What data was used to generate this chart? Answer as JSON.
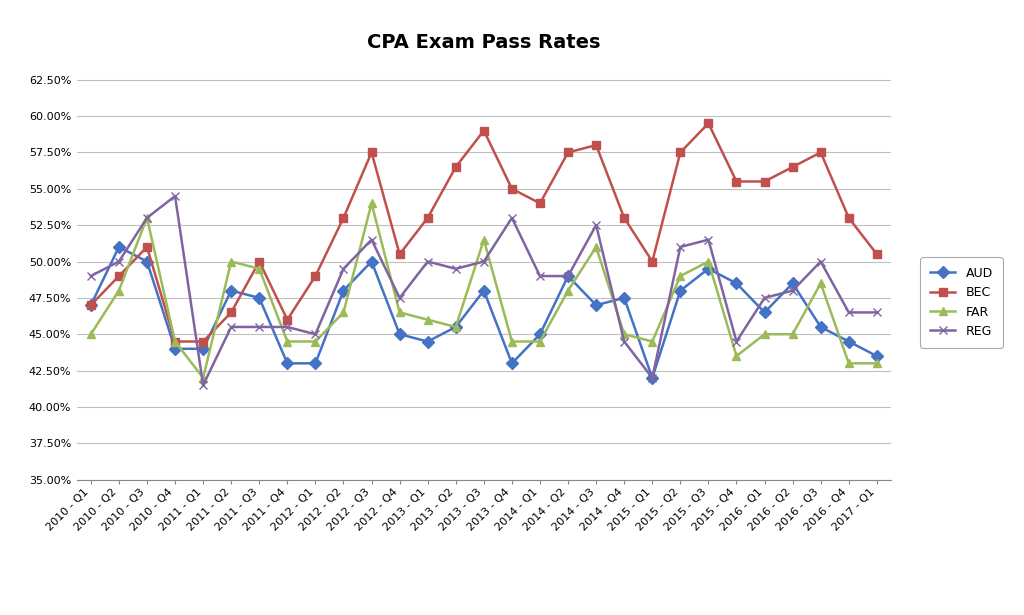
{
  "title": "CPA Exam Pass Rates",
  "categories": [
    "2010 - Q1",
    "2010 - Q2",
    "2010 - Q3",
    "2010 - Q4",
    "2011 - Q1",
    "2011 - Q2",
    "2011 - Q3",
    "2011 - Q4",
    "2012 - Q1",
    "2012 - Q2",
    "2012 - Q3",
    "2012 - Q4",
    "2013 - Q1",
    "2013 - Q2",
    "2013 - Q3",
    "2013 - Q4",
    "2014 - Q1",
    "2014 - Q2",
    "2014 - Q3",
    "2014 - Q4",
    "2015 - Q1",
    "2015 - Q2",
    "2015 - Q3",
    "2015 - Q4",
    "2016 - Q1",
    "2016 - Q2",
    "2016 - Q3",
    "2016 - Q4",
    "2017 - Q1"
  ],
  "AUD": [
    0.47,
    0.51,
    0.5,
    0.44,
    0.44,
    0.48,
    0.475,
    0.43,
    0.43,
    0.48,
    0.5,
    0.45,
    0.445,
    0.455,
    0.48,
    0.43,
    0.45,
    0.49,
    0.47,
    0.475,
    0.42,
    0.48,
    0.495,
    0.485,
    0.465,
    0.485,
    0.455,
    0.445,
    0.435
  ],
  "BEC": [
    0.47,
    0.49,
    0.51,
    0.445,
    0.445,
    0.465,
    0.5,
    0.46,
    0.49,
    0.53,
    0.575,
    0.505,
    0.53,
    0.565,
    0.59,
    0.55,
    0.54,
    0.575,
    0.58,
    0.53,
    0.5,
    0.575,
    0.595,
    0.555,
    0.555,
    0.565,
    0.575,
    0.53,
    0.505
  ],
  "FAR": [
    0.45,
    0.48,
    0.53,
    0.445,
    0.42,
    0.5,
    0.495,
    0.445,
    0.445,
    0.465,
    0.54,
    0.465,
    0.46,
    0.455,
    0.515,
    0.445,
    0.445,
    0.48,
    0.51,
    0.45,
    0.445,
    0.49,
    0.5,
    0.435,
    0.45,
    0.45,
    0.485,
    0.43,
    0.43
  ],
  "REG": [
    0.49,
    0.5,
    0.53,
    0.545,
    0.415,
    0.455,
    0.455,
    0.455,
    0.45,
    0.495,
    0.515,
    0.475,
    0.5,
    0.495,
    0.5,
    0.53,
    0.49,
    0.49,
    0.525,
    0.445,
    0.42,
    0.51,
    0.515,
    0.445,
    0.475,
    0.48,
    0.5,
    0.465,
    0.465
  ],
  "AUD_color": "#4472C4",
  "BEC_color": "#C0504D",
  "FAR_color": "#9BBB59",
  "REG_color": "#8064A2",
  "ylim_min": 0.35,
  "ylim_max": 0.6375,
  "yticks": [
    0.35,
    0.375,
    0.4,
    0.425,
    0.45,
    0.475,
    0.5,
    0.525,
    0.55,
    0.575,
    0.6,
    0.625
  ],
  "title_fontsize": 14,
  "tick_fontsize": 8,
  "legend_fontsize": 9,
  "background_color": "#FFFFFF",
  "grid_color": "#C0C0C0"
}
